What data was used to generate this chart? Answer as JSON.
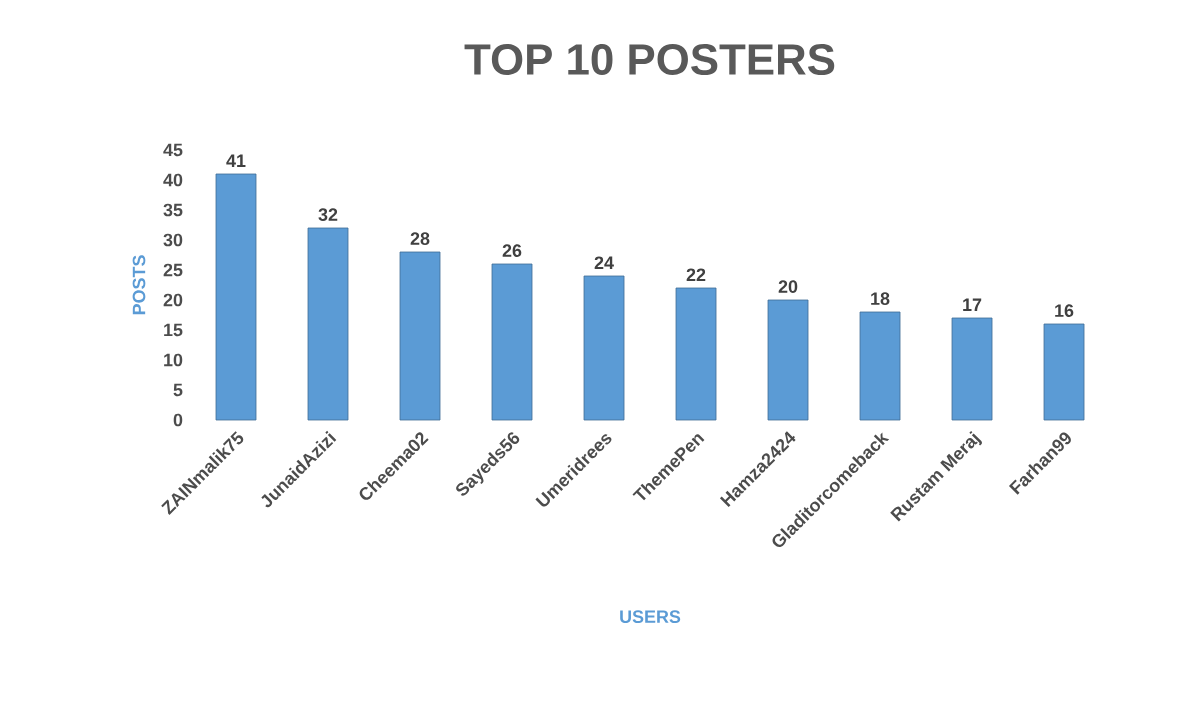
{
  "chart_data": {
    "type": "bar",
    "title": "TOP 10 POSTERS",
    "xlabel": "USERS",
    "ylabel": "POSTS",
    "categories": [
      "ZAINmalik75",
      "JunaidAzizi",
      "Cheema02",
      "Sayeds56",
      "Umeridrees",
      "ThemePen",
      "Hamza2424",
      "Gladitorcomeback",
      "Rustam Meraj",
      "Farhan99"
    ],
    "values": [
      41,
      32,
      28,
      26,
      24,
      22,
      20,
      18,
      17,
      16
    ],
    "color": "#5b9bd5",
    "ylim": [
      0,
      45
    ],
    "yticks": [
      0,
      5,
      10,
      15,
      20,
      25,
      30,
      35,
      40,
      45
    ],
    "data_labels": true
  }
}
